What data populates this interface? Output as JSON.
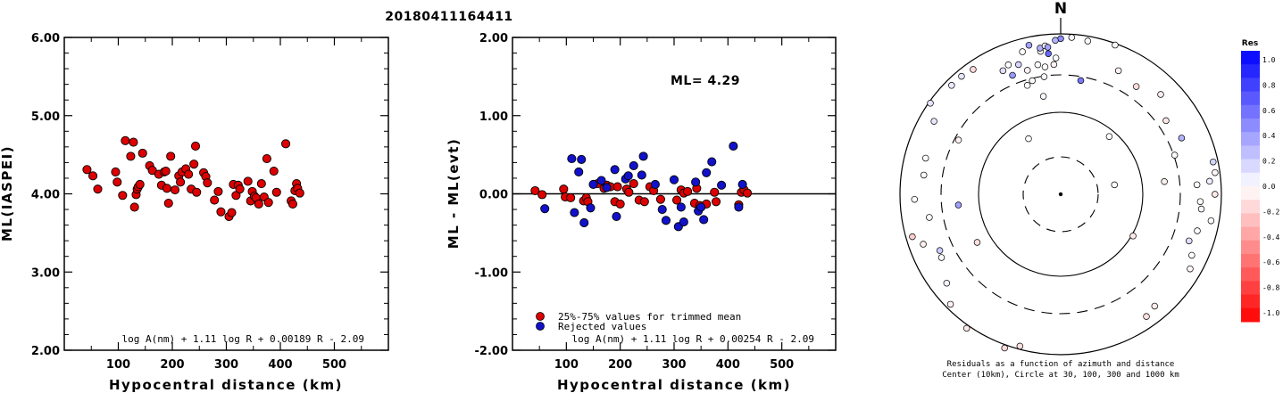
{
  "title": "20180411164411",
  "chart_data": [
    {
      "type": "scatter",
      "id": "left",
      "xlabel": "Hypocentral distance (km)",
      "ylabel": "ML(IASPEI)",
      "xlim": [
        0,
        600
      ],
      "ylim": [
        2.0,
        6.0
      ],
      "xticks": [
        100,
        200,
        300,
        400,
        500
      ],
      "xtick_labels": [
        "100",
        "200",
        "300",
        "400",
        "500"
      ],
      "yticks": [
        2.0,
        3.0,
        4.0,
        5.0,
        6.0
      ],
      "ytick_labels": [
        "2.00",
        "3.00",
        "4.00",
        "5.00",
        "6.00"
      ],
      "formula": "log A(nm) + 1.11 log R + 0.00189 R - 2.09",
      "series": [
        {
          "color": "#dd0000",
          "points": [
            [
              42,
              4.31
            ],
            [
              53,
              4.23
            ],
            [
              62,
              4.06
            ],
            [
              95,
              4.28
            ],
            [
              98,
              4.15
            ],
            [
              108,
              3.98
            ],
            [
              113,
              4.68
            ],
            [
              123,
              4.48
            ],
            [
              128,
              4.66
            ],
            [
              130,
              3.83
            ],
            [
              133,
              3.99
            ],
            [
              135,
              4.06
            ],
            [
              137,
              4.09
            ],
            [
              140,
              4.12
            ],
            [
              145,
              4.52
            ],
            [
              158,
              4.36
            ],
            [
              163,
              4.3
            ],
            [
              175,
              4.25
            ],
            [
              180,
              4.11
            ],
            [
              185,
              4.28
            ],
            [
              188,
              4.29
            ],
            [
              190,
              4.07
            ],
            [
              193,
              3.88
            ],
            [
              197,
              4.48
            ],
            [
              205,
              4.05
            ],
            [
              212,
              4.23
            ],
            [
              215,
              4.15
            ],
            [
              218,
              4.28
            ],
            [
              225,
              4.32
            ],
            [
              230,
              4.25
            ],
            [
              235,
              4.06
            ],
            [
              240,
              4.38
            ],
            [
              243,
              4.61
            ],
            [
              245,
              4.02
            ],
            [
              258,
              4.27
            ],
            [
              262,
              4.22
            ],
            [
              265,
              4.14
            ],
            [
              278,
              3.92
            ],
            [
              285,
              4.03
            ],
            [
              290,
              3.77
            ],
            [
              305,
              3.71
            ],
            [
              310,
              3.76
            ],
            [
              313,
              4.12
            ],
            [
              318,
              3.98
            ],
            [
              322,
              4.11
            ],
            [
              325,
              4.06
            ],
            [
              340,
              4.16
            ],
            [
              345,
              3.91
            ],
            [
              348,
              4.03
            ],
            [
              352,
              3.97
            ],
            [
              355,
              3.95
            ],
            [
              360,
              3.87
            ],
            [
              365,
              4.13
            ],
            [
              370,
              3.96
            ],
            [
              375,
              4.45
            ],
            [
              378,
              3.89
            ],
            [
              388,
              4.29
            ],
            [
              393,
              4.02
            ],
            [
              410,
              4.64
            ],
            [
              420,
              3.91
            ],
            [
              423,
              3.87
            ],
            [
              427,
              4.04
            ],
            [
              430,
              4.13
            ],
            [
              432,
              4.07
            ],
            [
              436,
              4.01
            ]
          ]
        }
      ]
    },
    {
      "type": "scatter",
      "id": "middle",
      "xlabel": "Hypocentral distance (km)",
      "ylabel": "ML - ML(evt)",
      "xlim": [
        0,
        600
      ],
      "ylim": [
        -2.0,
        2.0
      ],
      "xticks": [
        100,
        200,
        300,
        400,
        500
      ],
      "xtick_labels": [
        "100",
        "200",
        "300",
        "400",
        "500"
      ],
      "yticks": [
        -2.0,
        -1.0,
        0.0,
        1.0,
        2.0
      ],
      "ytick_labels": [
        "-2.00",
        "-1.00",
        "0.00",
        "1.00",
        "2.00"
      ],
      "reference_line": 0.0,
      "ml_label": "ML= 4.29",
      "formula": "log A(nm) + 1.11 log R + 0.00254 R - 2.09",
      "legend": [
        {
          "label": "25%-75% values for trimmed mean",
          "color": "#dd0000"
        },
        {
          "label": "Rejected values",
          "color": "#1111cc"
        }
      ],
      "series": [
        {
          "name": "25%-75% values for trimmed mean",
          "color": "#dd0000",
          "points": [
            [
              42,
              0.04
            ],
            [
              55,
              -0.01
            ],
            [
              95,
              0.06
            ],
            [
              98,
              -0.04
            ],
            [
              108,
              -0.05
            ],
            [
              132,
              -0.09
            ],
            [
              137,
              -0.05
            ],
            [
              140,
              -0.1
            ],
            [
              158,
              0.13
            ],
            [
              170,
              0.07
            ],
            [
              175,
              0.11
            ],
            [
              182,
              0.09
            ],
            [
              190,
              -0.1
            ],
            [
              195,
              0.09
            ],
            [
              200,
              -0.13
            ],
            [
              212,
              0.06
            ],
            [
              216,
              0.02
            ],
            [
              225,
              0.13
            ],
            [
              235,
              -0.08
            ],
            [
              245,
              -0.1
            ],
            [
              255,
              0.09
            ],
            [
              262,
              0.04
            ],
            [
              275,
              -0.07
            ],
            [
              305,
              -0.08
            ],
            [
              313,
              0.05
            ],
            [
              318,
              0.01
            ],
            [
              325,
              0.03
            ],
            [
              338,
              -0.12
            ],
            [
              342,
              0.07
            ],
            [
              348,
              -0.15
            ],
            [
              360,
              -0.13
            ],
            [
              375,
              0.02
            ],
            [
              378,
              -0.1
            ],
            [
              420,
              -0.14
            ],
            [
              425,
              0.02
            ],
            [
              430,
              0.05
            ],
            [
              436,
              0.01
            ]
          ]
        },
        {
          "name": "Rejected values",
          "color": "#1111cc",
          "points": [
            [
              60,
              -0.19
            ],
            [
              110,
              0.45
            ],
            [
              115,
              -0.24
            ],
            [
              123,
              0.28
            ],
            [
              128,
              0.44
            ],
            [
              133,
              -0.37
            ],
            [
              145,
              -0.18
            ],
            [
              150,
              0.12
            ],
            [
              165,
              0.17
            ],
            [
              175,
              0.08
            ],
            [
              190,
              0.31
            ],
            [
              193,
              -0.29
            ],
            [
              210,
              0.19
            ],
            [
              215,
              0.23
            ],
            [
              225,
              0.36
            ],
            [
              240,
              0.24
            ],
            [
              243,
              0.48
            ],
            [
              265,
              0.12
            ],
            [
              278,
              -0.2
            ],
            [
              285,
              -0.34
            ],
            [
              300,
              0.18
            ],
            [
              308,
              -0.42
            ],
            [
              313,
              -0.17
            ],
            [
              318,
              -0.36
            ],
            [
              340,
              0.15
            ],
            [
              345,
              -0.22
            ],
            [
              350,
              -0.17
            ],
            [
              355,
              -0.33
            ],
            [
              360,
              0.27
            ],
            [
              370,
              0.41
            ],
            [
              388,
              0.11
            ],
            [
              410,
              0.61
            ],
            [
              420,
              -0.17
            ],
            [
              427,
              0.12
            ]
          ]
        }
      ]
    },
    {
      "type": "scatter",
      "id": "azimuth",
      "north_label": "N",
      "caption1": "Residuals as a function of azimuth and distance",
      "caption2": "Center (10km), Circle at 30, 100, 300 and 1000 km",
      "colorbar_title": "Res",
      "colorbar_ticks": [
        "1.0",
        "0.8",
        "0.6",
        "0.4",
        "0.2",
        "0.0",
        "-0.2",
        "-0.4",
        "-0.6",
        "-0.8",
        "-1.0"
      ],
      "points": [
        [
          -10,
          0.62,
          0.03
        ],
        [
          -17,
          0.71,
          0.0
        ],
        [
          -14,
          0.73,
          -0.02
        ],
        [
          -8,
          0.74,
          0.03
        ],
        [
          -7,
          0.8,
          0.0
        ],
        [
          -18,
          0.85,
          0.16
        ],
        [
          -2,
          0.85,
          0.03
        ],
        [
          -3,
          0.81,
          -0.05
        ],
        [
          -8,
          0.9,
          0.02
        ],
        [
          -15,
          0.92,
          0.0
        ],
        [
          -12,
          0.95,
          0.36
        ],
        [
          -8,
          0.92,
          0.31
        ],
        [
          -6,
          0.93,
          0.04
        ],
        [
          0,
          0.97,
          0.45
        ],
        [
          4,
          0.98,
          0.03
        ],
        [
          10,
          0.97,
          -0.02
        ],
        [
          20,
          0.99,
          0.01
        ],
        [
          25,
          0.85,
          -0.05
        ],
        [
          35,
          0.82,
          -0.14
        ],
        [
          45,
          0.88,
          -0.07
        ],
        [
          55,
          0.8,
          -0.09
        ],
        [
          65,
          0.83,
          0.3
        ],
        [
          71,
          0.75,
          0.02
        ],
        [
          78,
          0.97,
          0.17
        ],
        [
          82,
          0.97,
          -0.04
        ],
        [
          85,
          0.93,
          0.07
        ],
        [
          86,
          0.85,
          0.0
        ],
        [
          90,
          0.96,
          -0.09
        ],
        [
          93,
          0.87,
          -0.02
        ],
        [
          96,
          0.88,
          0.04
        ],
        [
          100,
          0.95,
          0.02
        ],
        [
          105,
          0.88,
          0.0
        ],
        [
          110,
          0.85,
          0.13
        ],
        [
          115,
          0.9,
          0.0
        ],
        [
          120,
          0.93,
          -0.04
        ],
        [
          140,
          0.91,
          -0.08
        ],
        [
          145,
          0.93,
          -0.12
        ],
        [
          195,
          0.98,
          -0.12
        ],
        [
          200,
          1.02,
          -0.14
        ],
        [
          215,
          1.02,
          -0.09
        ],
        [
          225,
          0.97,
          -0.05
        ],
        [
          232,
          0.9,
          0.04
        ],
        [
          242,
          0.84,
          0.0
        ],
        [
          245,
          0.83,
          0.2
        ],
        [
          250,
          0.91,
          -0.06
        ],
        [
          254,
          0.96,
          -0.2
        ],
        [
          260,
          0.83,
          0.0
        ],
        [
          268,
          0.91,
          0.01
        ],
        [
          278,
          0.86,
          0.02
        ],
        [
          285,
          0.87,
          0.0
        ],
        [
          298,
          0.72,
          -0.05
        ],
        [
          300,
          0.91,
          0.1
        ],
        [
          305,
          0.99,
          0.1
        ],
        [
          315,
          0.96,
          0.08
        ],
        [
          320,
          0.96,
          0.1
        ],
        [
          325,
          0.95,
          -0.14
        ],
        [
          335,
          0.85,
          0.12
        ],
        [
          338,
          0.87,
          0.0
        ],
        [
          345,
          0.8,
          -0.05
        ],
        [
          350,
          0.82,
          0.0
        ],
        [
          355,
          0.92,
          0.36
        ],
        [
          358,
          0.96,
          0.3
        ],
        [
          40,
          0.47,
          0.0
        ],
        [
          80,
          0.34,
          0.0
        ],
        [
          83,
          0.65,
          -0.06
        ],
        [
          120,
          0.52,
          -0.09
        ],
        [
          240,
          0.6,
          -0.12
        ],
        [
          264,
          0.64,
          0.37
        ],
        [
          330,
          0.4,
          0.0
        ],
        [
          355,
          0.88,
          0.6
        ],
        [
          10,
          0.72,
          0.52
        ],
        [
          -22,
          0.8,
          0.4
        ]
      ]
    }
  ]
}
